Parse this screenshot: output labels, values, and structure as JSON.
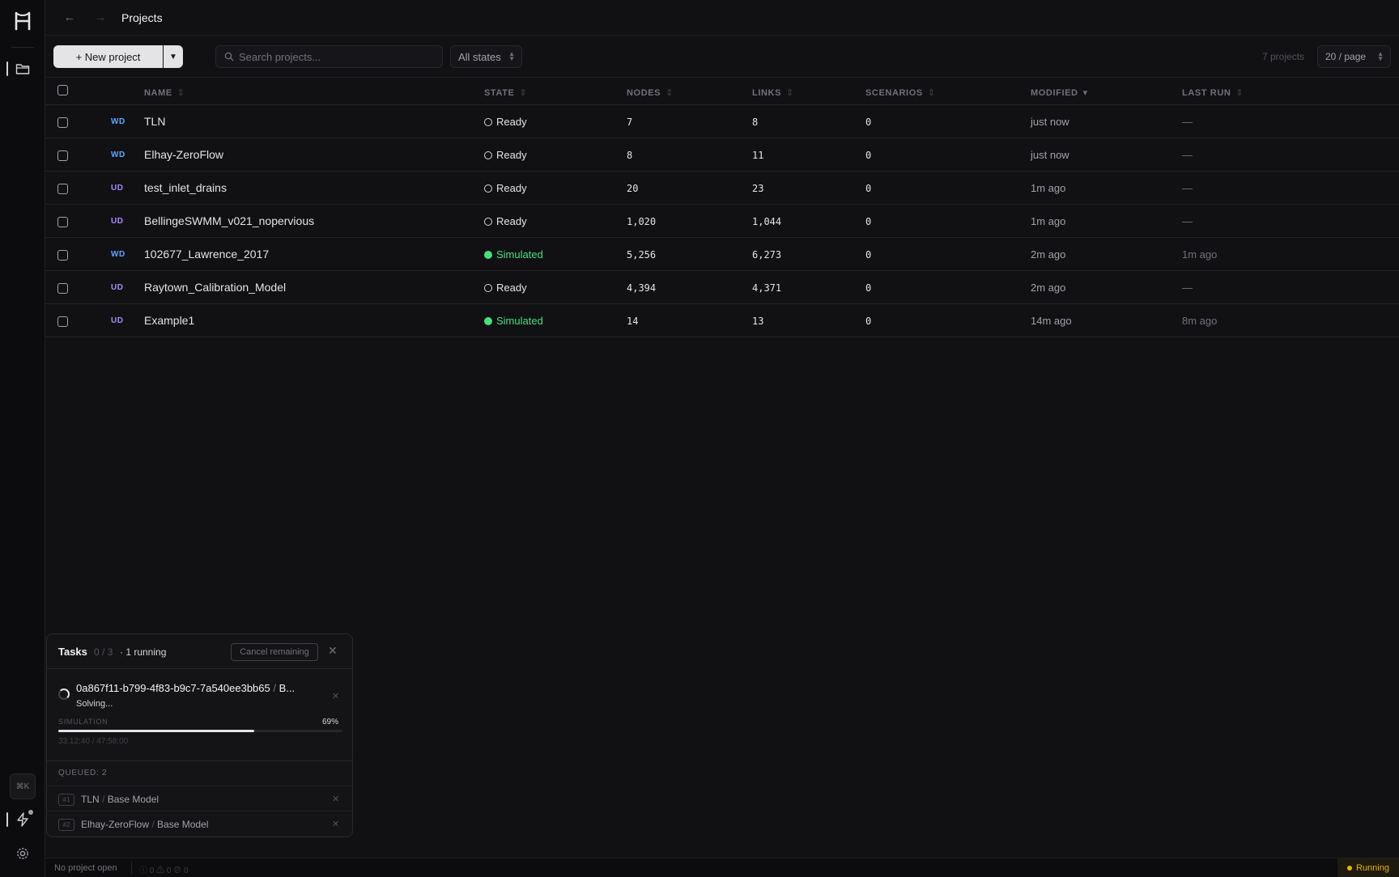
{
  "topbar": {
    "back_icon": "arrow-left-icon",
    "forward_icon": "arrow-right-icon",
    "title": "Projects"
  },
  "toolbar": {
    "new_project_label": "+ New project",
    "search_placeholder": "Search projects...",
    "state_filter": "All states",
    "count_label": "7 projects",
    "page_size": "20 / page"
  },
  "table": {
    "headers": {
      "name": "NAME",
      "state": "STATE",
      "nodes": "NODES",
      "links": "LINKS",
      "scenarios": "SCENARIOS",
      "modified": "MODIFIED",
      "last_run": "LAST RUN"
    },
    "rows": [
      {
        "tag": "WD",
        "name": "TLN",
        "state": "Ready",
        "nodes": "7",
        "links": "8",
        "scenarios": "0",
        "modified": "just now",
        "last_run": "—"
      },
      {
        "tag": "WD",
        "name": "Elhay-ZeroFlow",
        "state": "Ready",
        "nodes": "8",
        "links": "11",
        "scenarios": "0",
        "modified": "just now",
        "last_run": "—"
      },
      {
        "tag": "UD",
        "name": "test_inlet_drains",
        "state": "Ready",
        "nodes": "20",
        "links": "23",
        "scenarios": "0",
        "modified": "1m ago",
        "last_run": "—"
      },
      {
        "tag": "UD",
        "name": "BellingeSWMM_v021_nopervious",
        "state": "Ready",
        "nodes": "1,020",
        "links": "1,044",
        "scenarios": "0",
        "modified": "1m ago",
        "last_run": "—"
      },
      {
        "tag": "WD",
        "name": "102677_Lawrence_2017",
        "state": "Simulated",
        "nodes": "5,256",
        "links": "6,273",
        "scenarios": "0",
        "modified": "2m ago",
        "last_run": "1m ago"
      },
      {
        "tag": "UD",
        "name": "Raytown_Calibration_Model",
        "state": "Ready",
        "nodes": "4,394",
        "links": "4,371",
        "scenarios": "0",
        "modified": "2m ago",
        "last_run": "—"
      },
      {
        "tag": "UD",
        "name": "Example1",
        "state": "Simulated",
        "nodes": "14",
        "links": "13",
        "scenarios": "0",
        "modified": "14m ago",
        "last_run": "8m ago"
      }
    ]
  },
  "tasks": {
    "title": "Tasks",
    "fraction": "0 / 3",
    "running": "· 1 running",
    "cancel_label": "Cancel remaining",
    "current": {
      "id": "0a867f11-b799-4f83-b9c7-7a540ee3bb65",
      "sep": " / ",
      "target": "B...",
      "status": "Solving...",
      "phase": "SIMULATION",
      "percent_label": "69%",
      "progress": 0.69,
      "elapsed": "33:12:40 / 47:58:00"
    },
    "queued_label": "QUEUED: 2",
    "queue": [
      {
        "num": "#1",
        "project": "TLN",
        "sep": " / ",
        "model": "Base Model"
      },
      {
        "num": "#2",
        "project": "Elhay-ZeroFlow",
        "sep": " / ",
        "model": "Base Model"
      }
    ]
  },
  "rail": {
    "shortcut": "⌘K"
  },
  "status": {
    "project": "No project open",
    "counts": "ⓘ 0  ⚠ 0  ⊘ 0",
    "running": "Running"
  },
  "colors": {
    "ready": "#d4d4d8",
    "simulated": "#4ade80",
    "wd_tag": "#60a5fa",
    "ud_tag": "#a78bfa",
    "running": "#eab308"
  }
}
